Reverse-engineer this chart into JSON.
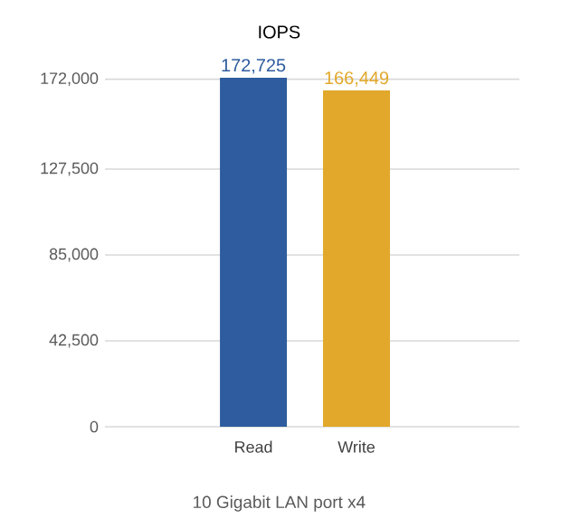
{
  "chart_data": {
    "type": "bar",
    "title": "IOPS",
    "xlabel": "10 Gigabit LAN port x4",
    "categories": [
      "Read",
      "Write"
    ],
    "values": [
      172725,
      166449
    ],
    "colors": [
      "#2e5c9e",
      "#e2a82b"
    ],
    "value_labels": [
      "172,725",
      "166,449"
    ],
    "ylim": [
      0,
      172725
    ],
    "yticks": [
      0,
      {
        "value": 42500,
        "label": "42,500"
      },
      {
        "value": 85000,
        "label": "85,000"
      },
      {
        "value": 127500,
        "label": "127,500"
      },
      {
        "value": 172000,
        "label": "172,000"
      }
    ],
    "grid": "y"
  }
}
